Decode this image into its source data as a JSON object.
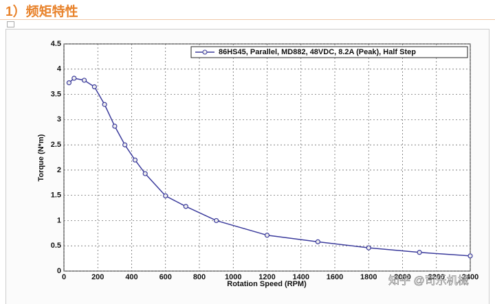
{
  "header": {
    "title": "1）频矩特性"
  },
  "chart_data": {
    "type": "line",
    "xlabel": "Rotation Speed (RPM)",
    "ylabel": "Torque (N*m)",
    "x": [
      30,
      60,
      120,
      180,
      240,
      300,
      360,
      420,
      480,
      600,
      720,
      900,
      1200,
      1500,
      1800,
      2100,
      2400
    ],
    "series": [
      {
        "name": "86HS45, Parallel, MD882, 48VDC, 8.2A (Peak), Half Step",
        "color": "#3b3b9c",
        "values": [
          3.73,
          3.82,
          3.78,
          3.65,
          3.3,
          2.87,
          2.5,
          2.2,
          1.93,
          1.49,
          1.28,
          1.0,
          0.71,
          0.58,
          0.46,
          0.37,
          0.3
        ]
      }
    ],
    "xlim": [
      0,
      2400
    ],
    "xticks": [
      0,
      200,
      400,
      600,
      800,
      1000,
      1200,
      1400,
      1600,
      1800,
      2000,
      2200,
      2400
    ],
    "ylim": [
      0,
      4.5
    ],
    "yticks": [
      0,
      0.5,
      1,
      1.5,
      2,
      2.5,
      3,
      3.5,
      4,
      4.5
    ],
    "grid": true,
    "legend": "top-right"
  },
  "watermark": "知乎 @司乐机械"
}
